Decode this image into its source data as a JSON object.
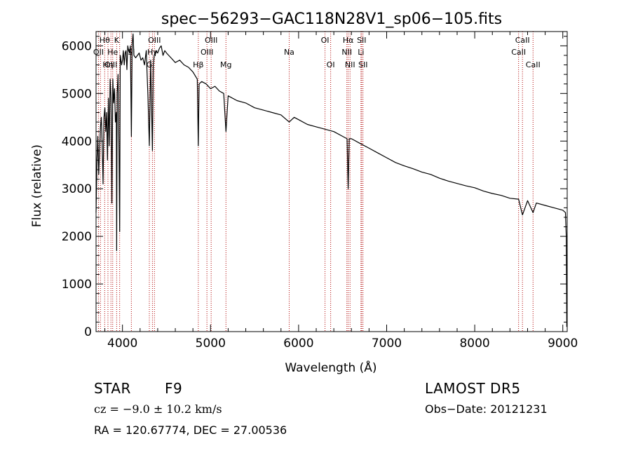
{
  "chart_data": {
    "type": "line",
    "title": "spec−56293−GAC118N28V1_sp06−105.fits",
    "xlabel": "Wavelength (Å)",
    "ylabel": "Flux (relative)",
    "xlim": [
      3700,
      9050
    ],
    "ylim": [
      0,
      6300
    ],
    "xticks": [
      4000,
      5000,
      6000,
      7000,
      8000,
      9000
    ],
    "yticks": [
      0,
      1000,
      2000,
      3000,
      4000,
      5000,
      6000
    ],
    "grid": false,
    "spectrum_color": "#000000",
    "line_marker_color": "#b00000",
    "series": [
      {
        "x": [
          3700,
          3710,
          3720,
          3730,
          3740,
          3750,
          3760,
          3770,
          3780,
          3790,
          3800,
          3810,
          3820,
          3830,
          3840,
          3850,
          3860,
          3870,
          3880,
          3890,
          3900,
          3910,
          3920,
          3930,
          3934,
          3940,
          3950,
          3960,
          3968,
          3975,
          3990,
          4000,
          4010,
          4020,
          4030,
          4040,
          4050,
          4060,
          4070,
          4080,
          4090,
          4101,
          4110,
          4120,
          4130,
          4150,
          4170,
          4190,
          4210,
          4230,
          4250,
          4270,
          4290,
          4305,
          4320,
          4340,
          4350,
          4360,
          4380,
          4400,
          4420,
          4440,
          4460,
          4480,
          4500,
          4550,
          4600,
          4650,
          4700,
          4750,
          4800,
          4850,
          4861,
          4870,
          4900,
          4950,
          5000,
          5050,
          5100,
          5150,
          5175,
          5200,
          5300,
          5400,
          5500,
          5600,
          5700,
          5800,
          5893,
          5950,
          6000,
          6100,
          6200,
          6300,
          6400,
          6500,
          6550,
          6563,
          6575,
          6600,
          6700,
          6800,
          6900,
          7000,
          7100,
          7200,
          7300,
          7400,
          7500,
          7600,
          7700,
          7800,
          7900,
          8000,
          8100,
          8200,
          8300,
          8400,
          8498,
          8542,
          8600,
          8662,
          8700,
          8800,
          8900,
          9000,
          9030,
          9040,
          9045
        ],
        "y": [
          2500,
          3600,
          4100,
          3300,
          3800,
          4300,
          4500,
          3900,
          3100,
          4500,
          4700,
          4200,
          4600,
          3600,
          4900,
          3900,
          5300,
          4900,
          2700,
          5300,
          4800,
          5100,
          4400,
          4600,
          1700,
          5000,
          5400,
          3800,
          2100,
          5800,
          5600,
          5700,
          5900,
          5600,
          5850,
          5900,
          5500,
          6000,
          5900,
          5850,
          6000,
          4100,
          6050,
          6250,
          5800,
          5750,
          5800,
          5850,
          5700,
          5750,
          5600,
          5900,
          4900,
          3900,
          5700,
          3800,
          5600,
          5800,
          5900,
          5850,
          5950,
          6000,
          5800,
          5900,
          5850,
          5750,
          5650,
          5700,
          5600,
          5550,
          5450,
          5300,
          3900,
          5200,
          5250,
          5200,
          5100,
          5150,
          5050,
          5000,
          4200,
          4950,
          4850,
          4800,
          4700,
          4650,
          4600,
          4550,
          4400,
          4500,
          4450,
          4350,
          4300,
          4250,
          4200,
          4100,
          4050,
          3000,
          4050,
          4050,
          3950,
          3850,
          3750,
          3650,
          3550,
          3480,
          3420,
          3350,
          3300,
          3220,
          3160,
          3110,
          3060,
          3020,
          2950,
          2900,
          2860,
          2800,
          2780,
          2450,
          2750,
          2500,
          2700,
          2650,
          2600,
          2550,
          2500,
          2000,
          100
        ]
      }
    ],
    "annotations": [
      {
        "label": "Hθ",
        "wavelength": 3798,
        "row": 1
      },
      {
        "label": "K",
        "wavelength": 3934,
        "row": 1
      },
      {
        "label": "OII",
        "wavelength": 3727,
        "row": 2
      },
      {
        "label": "He",
        "wavelength": 3889,
        "row": 2
      },
      {
        "label": "OIII",
        "wavelength": 3869,
        "row": 3
      },
      {
        "label": "Hη",
        "wavelength": 3835,
        "row": 3
      },
      {
        "label": "Si",
        "wavelength": 4101,
        "row": 2
      },
      {
        "label": "OIII",
        "wavelength": 4363,
        "row": 1
      },
      {
        "label": "Hγ",
        "wavelength": 4340,
        "row": 2
      },
      {
        "label": "G",
        "wavelength": 4305,
        "row": 3
      },
      {
        "label": "OIII",
        "wavelength": 5007,
        "row": 1
      },
      {
        "label": "OIII",
        "wavelength": 4959,
        "row": 2
      },
      {
        "label": "Hβ",
        "wavelength": 4861,
        "row": 3
      },
      {
        "label": "Mg",
        "wavelength": 5175,
        "row": 3
      },
      {
        "label": "Na",
        "wavelength": 5893,
        "row": 2
      },
      {
        "label": "OI",
        "wavelength": 6300,
        "row": 1
      },
      {
        "label": "OI",
        "wavelength": 6364,
        "row": 3
      },
      {
        "label": "Hα",
        "wavelength": 6563,
        "row": 1
      },
      {
        "label": "SII",
        "wavelength": 6716,
        "row": 1
      },
      {
        "label": "NII",
        "wavelength": 6548,
        "row": 2
      },
      {
        "label": "Li",
        "wavelength": 6708,
        "row": 2
      },
      {
        "label": "NII",
        "wavelength": 6584,
        "row": 3
      },
      {
        "label": "SII",
        "wavelength": 6731,
        "row": 3
      },
      {
        "label": "CaII",
        "wavelength": 8542,
        "row": 1
      },
      {
        "label": "CaII",
        "wavelength": 8498,
        "row": 2
      },
      {
        "label": "CaII",
        "wavelength": 8662,
        "row": 3
      }
    ],
    "marker_wavelengths": [
      3727,
      3750,
      3798,
      3835,
      3869,
      3889,
      3934,
      3968,
      4101,
      4305,
      4340,
      4363,
      4861,
      4959,
      5007,
      5175,
      5893,
      6300,
      6364,
      6548,
      6563,
      6584,
      6708,
      6716,
      6731,
      8498,
      8542,
      8662
    ]
  },
  "footer": {
    "object_class": "STAR",
    "subclass": "F9",
    "survey": "LAMOST  DR5",
    "redshift_text": "cz = −9.0 ± 10.2 km/s",
    "obs_date": "Obs−Date: 20121231",
    "coords": "RA = 120.67774, DEC =  27.00536"
  }
}
